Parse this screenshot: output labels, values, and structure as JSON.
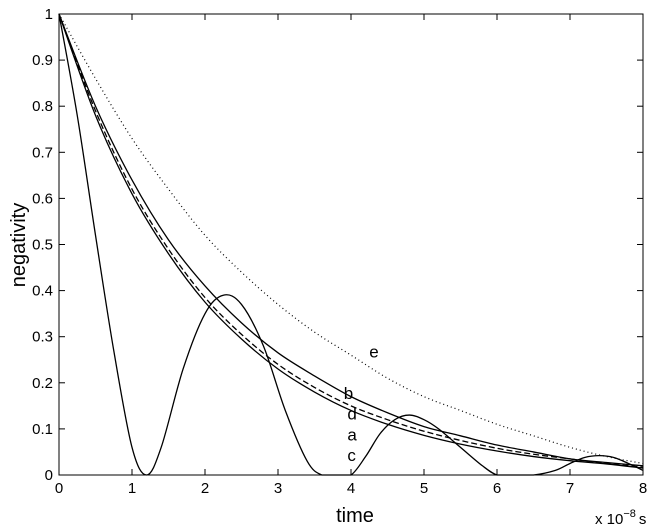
{
  "chart_data": {
    "type": "line",
    "xlabel": "time",
    "ylabel": "negativity",
    "x_unit_note": "x 10",
    "x_unit_exp": "−8",
    "x_unit_s": "s",
    "xlim": [
      0,
      8
    ],
    "ylim": [
      0,
      1
    ],
    "xticks": [
      "0",
      "1",
      "2",
      "3",
      "4",
      "5",
      "6",
      "7",
      "8"
    ],
    "yticks": [
      "0",
      "0.1",
      "0.2",
      "0.3",
      "0.4",
      "0.5",
      "0.6",
      "0.7",
      "0.8",
      "0.9",
      "1"
    ],
    "grid": false,
    "series": [
      {
        "name": "e",
        "style": "dotted",
        "x": [
          0,
          0.5,
          1,
          1.5,
          2,
          2.5,
          3,
          3.5,
          4,
          4.5,
          5,
          5.5,
          6,
          6.5,
          7,
          7.5,
          8
        ],
        "y": [
          1.0,
          0.86,
          0.73,
          0.62,
          0.52,
          0.44,
          0.37,
          0.31,
          0.26,
          0.21,
          0.17,
          0.14,
          0.11,
          0.085,
          0.06,
          0.04,
          0.025
        ]
      },
      {
        "name": "b",
        "style": "solid",
        "x": [
          0,
          0.5,
          1,
          1.5,
          2,
          2.5,
          3,
          3.5,
          4,
          4.5,
          5,
          5.5,
          6,
          6.5,
          7,
          7.5,
          8
        ],
        "y": [
          1.0,
          0.8,
          0.64,
          0.51,
          0.41,
          0.33,
          0.265,
          0.215,
          0.17,
          0.135,
          0.105,
          0.085,
          0.065,
          0.05,
          0.035,
          0.027,
          0.02
        ]
      },
      {
        "name": "d",
        "style": "dashed",
        "x": [
          0,
          0.5,
          1,
          1.5,
          2,
          2.5,
          3,
          3.5,
          4,
          4.5,
          5,
          5.5,
          6,
          6.5,
          7,
          7.5,
          8
        ],
        "y": [
          1.0,
          0.79,
          0.62,
          0.49,
          0.385,
          0.305,
          0.24,
          0.19,
          0.15,
          0.12,
          0.095,
          0.075,
          0.058,
          0.045,
          0.035,
          0.025,
          0.017
        ]
      },
      {
        "name": "a",
        "style": "solid",
        "x": [
          0,
          0.5,
          1,
          1.5,
          2,
          2.5,
          3,
          3.5,
          4,
          4.5,
          5,
          5.5,
          6,
          6.5,
          7,
          7.5,
          8
        ],
        "y": [
          1.0,
          0.78,
          0.61,
          0.48,
          0.375,
          0.295,
          0.23,
          0.18,
          0.14,
          0.11,
          0.086,
          0.067,
          0.052,
          0.04,
          0.031,
          0.024,
          0.015
        ]
      },
      {
        "name": "c",
        "style": "solid",
        "x": [
          0,
          0.25,
          0.5,
          0.75,
          1,
          1.2,
          1.4,
          1.7,
          2,
          2.25,
          2.5,
          2.8,
          3.1,
          3.4,
          3.6,
          3.8,
          4.0,
          4.2,
          4.4,
          4.6,
          4.8,
          5.0,
          5.2,
          5.5,
          5.8,
          6.0,
          6.2,
          6.5,
          6.8,
          7.0,
          7.2,
          7.4,
          7.6,
          7.8,
          8
        ],
        "y": [
          1.0,
          0.78,
          0.52,
          0.27,
          0.06,
          0.0,
          0.06,
          0.23,
          0.35,
          0.39,
          0.37,
          0.28,
          0.14,
          0.03,
          0.0,
          0.0,
          0.0,
          0.04,
          0.09,
          0.12,
          0.13,
          0.12,
          0.1,
          0.06,
          0.02,
          0.0,
          0.0,
          0.0,
          0.01,
          0.025,
          0.038,
          0.042,
          0.038,
          0.025,
          0.01
        ]
      }
    ],
    "curve_labels": [
      "e",
      "b",
      "d",
      "a",
      "c"
    ]
  }
}
